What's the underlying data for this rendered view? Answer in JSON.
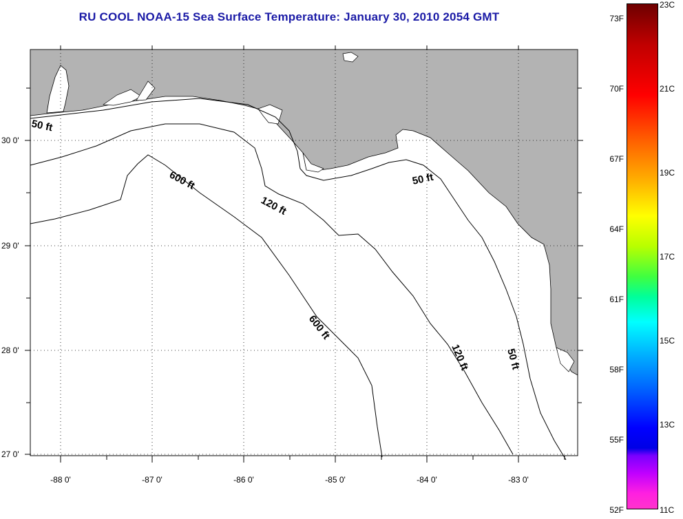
{
  "title": "RU COOL  NOAA-15  Sea Surface Temperature:  January 30, 2010 2054 GMT",
  "map": {
    "land_color": "#b3b3b3",
    "water_color": "#ffffff",
    "lat_labels": [
      "30 0'",
      "29 0'",
      "28 0'",
      "27 0'"
    ],
    "lon_labels": [
      "-88 0'",
      "-87 0'",
      "-86 0'",
      "-85 0'",
      "-84 0'",
      "-83 0'"
    ],
    "isobath_labels": [
      "50 ft",
      "600 ft",
      "120 ft",
      "50 ft",
      "600 ft",
      "120 ft",
      "50 ft"
    ]
  },
  "colorbar": {
    "fahrenheit": [
      "73F",
      "70F",
      "67F",
      "64F",
      "61F",
      "58F",
      "55F",
      "52F"
    ],
    "celsius": [
      "23C",
      "21C",
      "19C",
      "17C",
      "15C",
      "13C",
      "11C"
    ]
  }
}
